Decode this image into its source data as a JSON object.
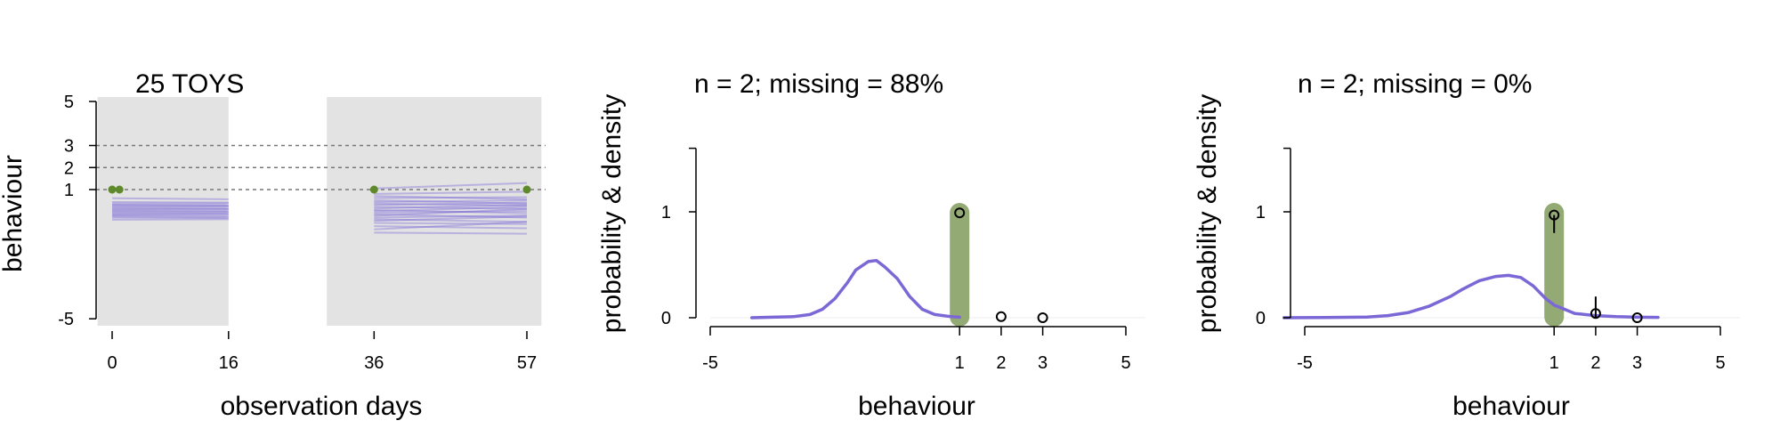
{
  "colors": {
    "panel_shade": "#e3e3e3",
    "line": "#7b68d6",
    "point": "#5f8a2c",
    "bar": "#93aa74",
    "ref": "#777777",
    "axis": "#000000"
  },
  "chart_data": [
    {
      "type": "line",
      "title": "25 TOYS",
      "xlabel": "observation days",
      "ylabel": "behaviour",
      "x_ticks": [
        "0",
        "16",
        "36",
        "57"
      ],
      "x_tick_values": [
        0,
        16,
        36,
        57
      ],
      "y_ticks": [
        "5",
        "3",
        "2",
        "1",
        "-5"
      ],
      "y_tick_values": [
        5,
        3,
        2,
        1,
        -5
      ],
      "xlim": [
        -2,
        59
      ],
      "ylim": [
        -5.3,
        5
      ],
      "y_scale": "compressed",
      "shaded_ranges": [
        [
          -2,
          16
        ],
        [
          29.5,
          59
        ]
      ],
      "reference_lines": [
        3,
        2,
        1
      ],
      "observed_points": [
        {
          "x": 0,
          "y": 1
        },
        {
          "x": 1,
          "y": 1
        },
        {
          "x": 36,
          "y": 1
        },
        {
          "x": 57,
          "y": 1
        }
      ],
      "segments": [
        {
          "range": [
            0,
            16
          ],
          "start": [
            0.6,
            0.42,
            0.35,
            0.3,
            0.25,
            0.2,
            0.15,
            0.1,
            0.05,
            0.0,
            -0.05,
            -0.1,
            -0.15,
            -0.2,
            -0.25,
            -0.3,
            -0.4
          ],
          "end": [
            0.55,
            0.4,
            0.36,
            0.27,
            0.24,
            0.22,
            0.12,
            0.11,
            0.06,
            -0.02,
            -0.04,
            -0.12,
            -0.13,
            -0.22,
            -0.27,
            -0.33,
            -0.38
          ]
        },
        {
          "range": [
            36,
            57
          ],
          "start": [
            1.05,
            0.8,
            0.7,
            0.6,
            0.5,
            0.42,
            0.35,
            0.28,
            0.2,
            0.12,
            0.05,
            0.0,
            -0.08,
            -0.15,
            -0.22,
            -0.3,
            -0.38,
            -0.45,
            -0.55,
            -0.7,
            -0.85,
            -1.0
          ],
          "end": [
            1.3,
            0.9,
            0.55,
            0.65,
            0.35,
            0.5,
            0.25,
            0.4,
            0.1,
            0.3,
            -0.1,
            0.2,
            0.0,
            -0.3,
            0.1,
            -0.2,
            -0.5,
            -0.25,
            -0.6,
            -0.8,
            -0.5,
            -1.05
          ]
        }
      ]
    },
    {
      "type": "area",
      "title": "n = 2; missing = 88%",
      "xlabel": "behaviour",
      "ylabel": "probability & density",
      "x_ticks": [
        "-5",
        "1",
        "2",
        "3",
        "5"
      ],
      "x_tick_values": [
        -5,
        1,
        2,
        3,
        5
      ],
      "y_ticks": [
        "1",
        "0"
      ],
      "y_tick_values": [
        1,
        0
      ],
      "xlim": [
        -5,
        5
      ],
      "ylim": [
        0,
        1.6
      ],
      "density": {
        "x": [
          -4,
          -3.5,
          -3,
          -2.6,
          -2.3,
          -2.0,
          -1.7,
          -1.5,
          -1.2,
          -1.0,
          -0.8,
          -0.5,
          -0.2,
          0.1,
          0.4,
          0.8,
          1.0
        ],
        "y": [
          0.0,
          0.005,
          0.01,
          0.03,
          0.08,
          0.18,
          0.33,
          0.45,
          0.53,
          0.54,
          0.48,
          0.37,
          0.2,
          0.08,
          0.03,
          0.01,
          0.005
        ]
      },
      "highlight_bar": {
        "x": 1,
        "height": 1.0
      },
      "points": [
        {
          "x": 1,
          "y": 0.99,
          "err": [
            0.99,
            0.99
          ]
        },
        {
          "x": 2,
          "y": 0.01,
          "err": [
            0.01,
            0.01
          ]
        },
        {
          "x": 3,
          "y": 0.0,
          "err": [
            0.0,
            0.0
          ]
        }
      ]
    },
    {
      "type": "area",
      "title": "n = 2; missing = 0%",
      "xlabel": "behaviour",
      "ylabel": "probability & density",
      "x_ticks": [
        "-5",
        "1",
        "2",
        "3",
        "5"
      ],
      "x_tick_values": [
        -5,
        1,
        2,
        3,
        5
      ],
      "y_ticks": [
        "1",
        "0"
      ],
      "y_tick_values": [
        1,
        0
      ],
      "xlim": [
        -5,
        5
      ],
      "ylim": [
        0,
        1.6
      ],
      "density": {
        "x": [
          -5.5,
          -4.5,
          -3.5,
          -3.0,
          -2.5,
          -2.0,
          -1.5,
          -1.2,
          -0.8,
          -0.4,
          -0.1,
          0.2,
          0.5,
          0.8,
          1.0,
          1.5,
          2.0,
          2.5,
          3.0,
          3.5
        ],
        "y": [
          0.0,
          0.002,
          0.006,
          0.02,
          0.05,
          0.11,
          0.2,
          0.27,
          0.35,
          0.39,
          0.4,
          0.38,
          0.3,
          0.18,
          0.12,
          0.04,
          0.02,
          0.01,
          0.005,
          0.003
        ]
      },
      "highlight_bar": {
        "x": 1,
        "height": 1.0
      },
      "points": [
        {
          "x": 1,
          "y": 0.97,
          "err": [
            0.8,
            0.97
          ]
        },
        {
          "x": 2,
          "y": 0.04,
          "err": [
            0.0,
            0.2
          ]
        },
        {
          "x": 3,
          "y": 0.0,
          "err": [
            0.0,
            0.0
          ]
        }
      ]
    }
  ]
}
